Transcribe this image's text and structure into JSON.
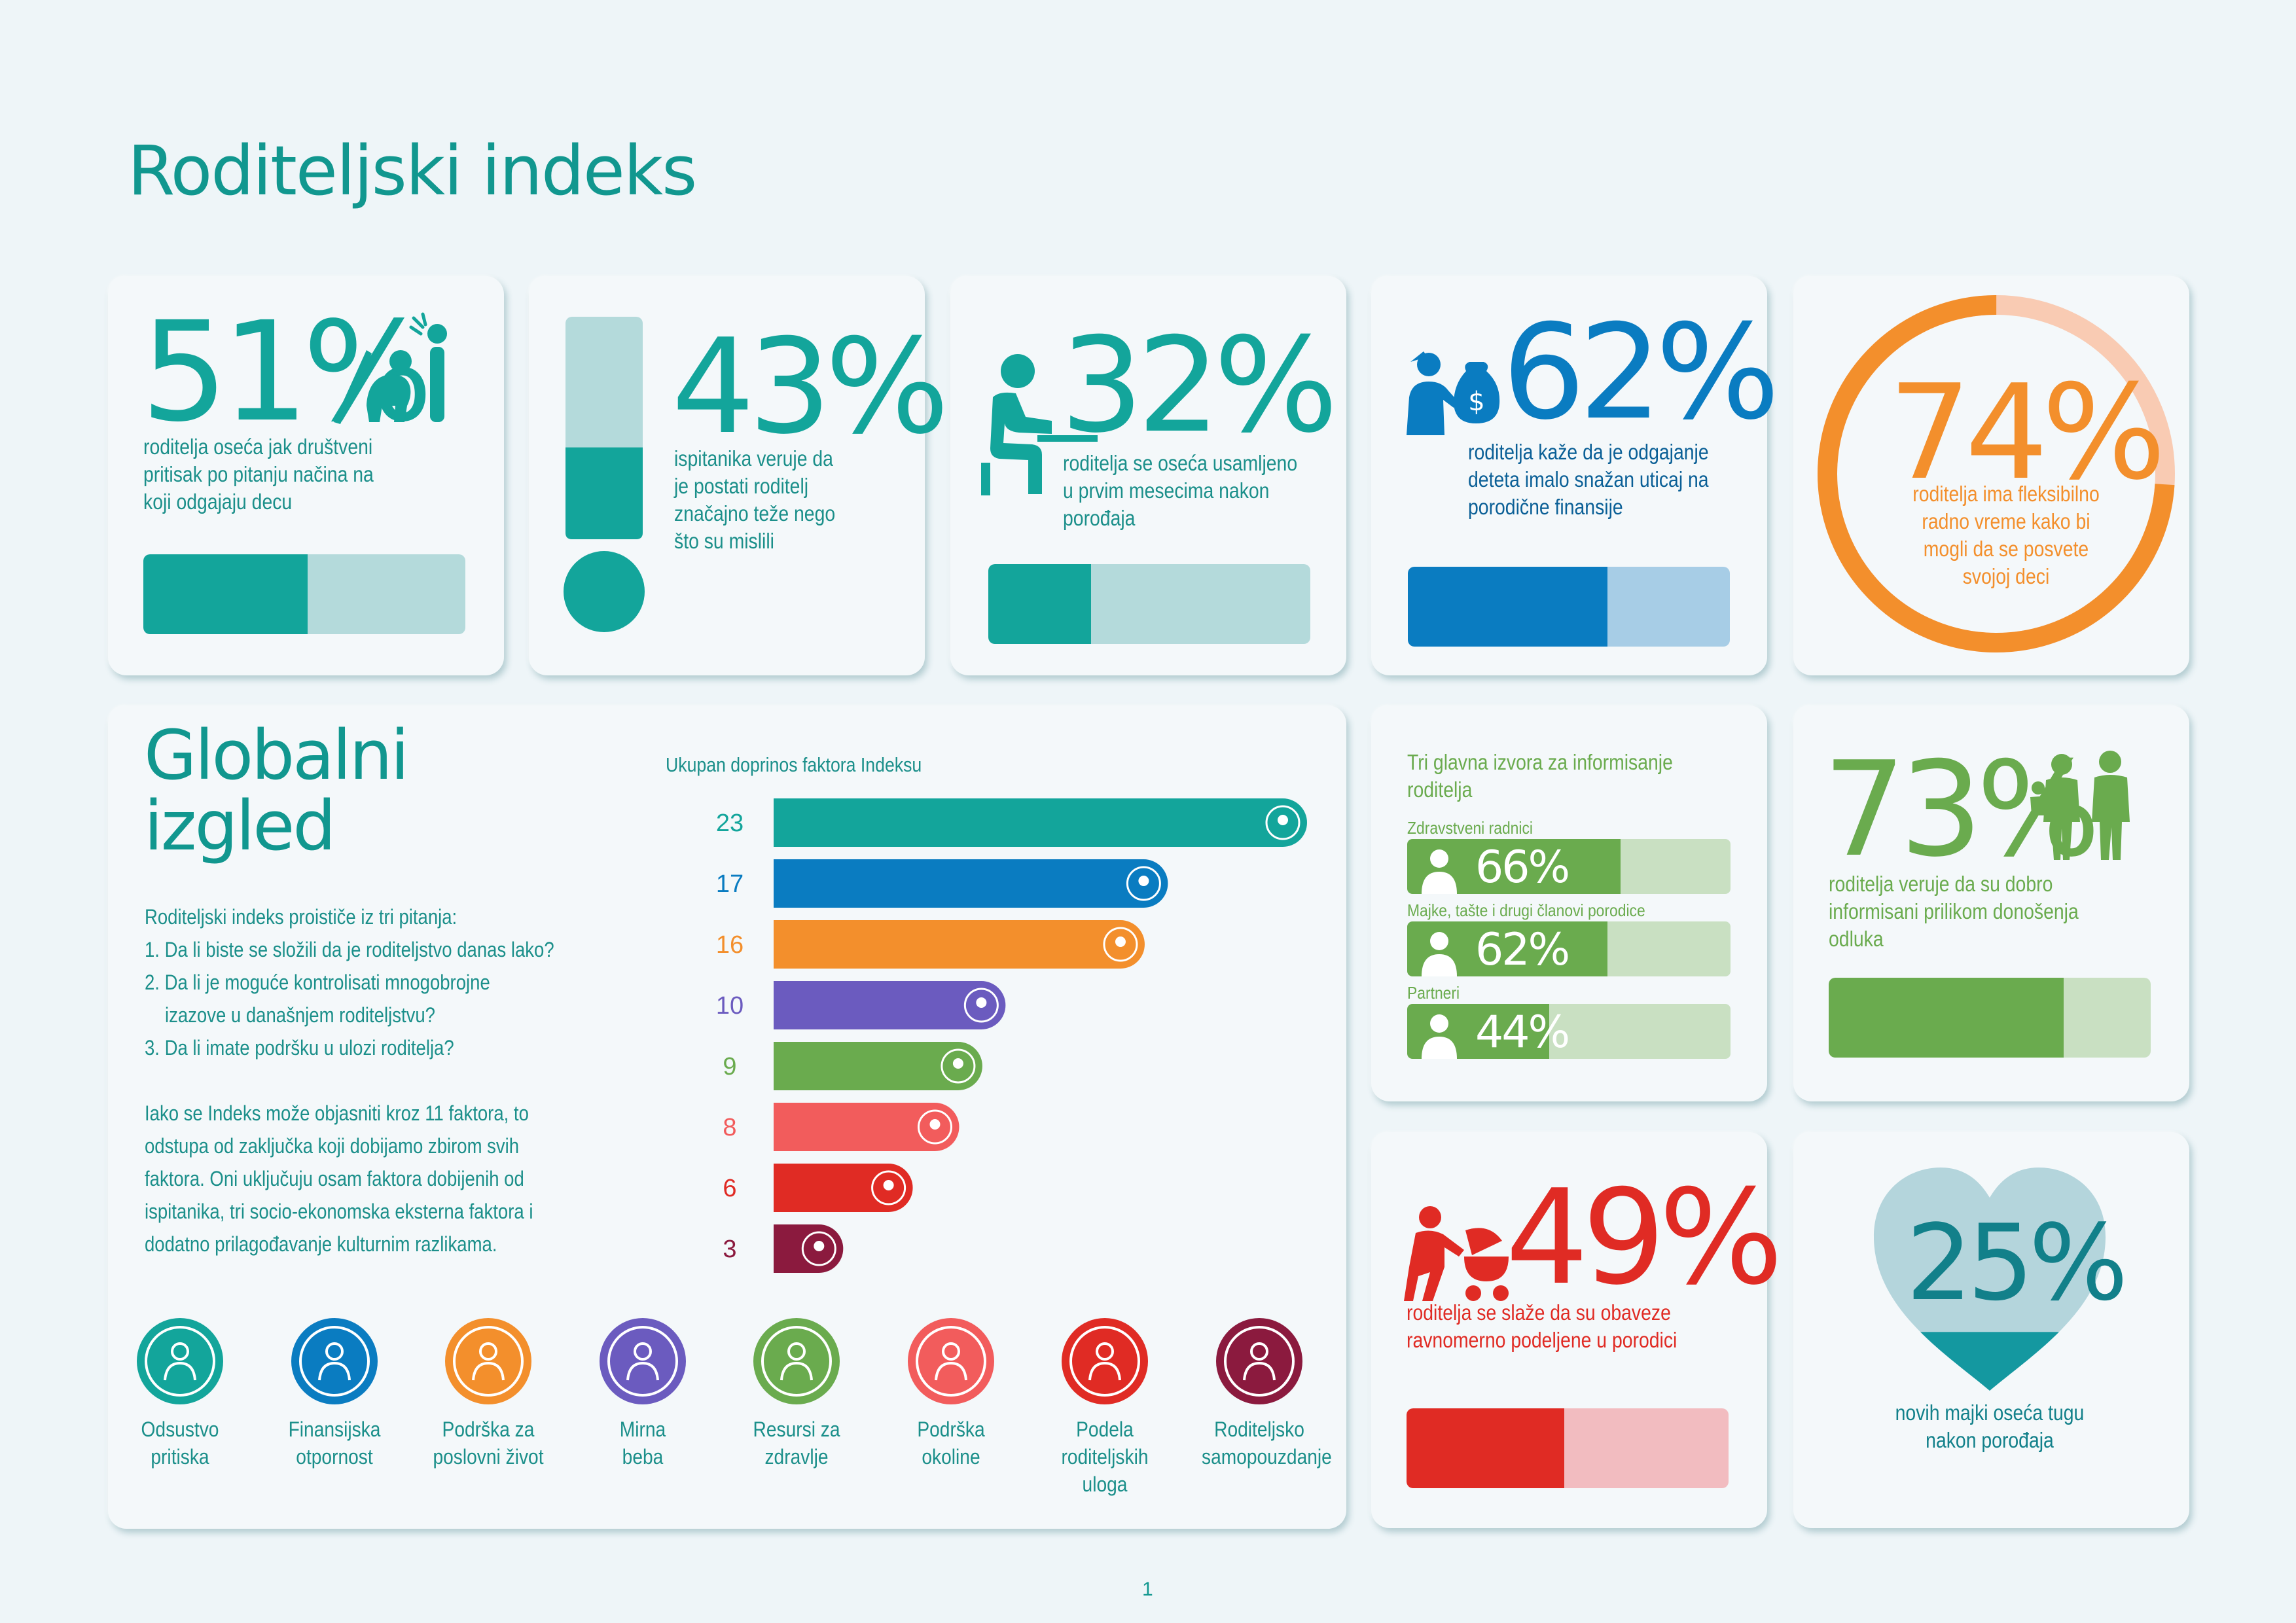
{
  "page_title": "Roditeljski indeks",
  "page_number": "1",
  "colors": {
    "teal": "#13a59b",
    "teal_light": "#b4dadb",
    "blue": "#0a7cc1",
    "blue_light": "#a7cde6",
    "orange": "#f38f2c",
    "orange_light": "#f9cbb3",
    "green": "#6aab4e",
    "green_light": "#c9e0c2",
    "red": "#e02b24",
    "red_light": "#f2bcc0",
    "purple": "#6b5bbf",
    "coral": "#f25c5c",
    "maroon": "#8b1a3e"
  },
  "stats": {
    "s51": {
      "value": "51%",
      "fraction": 0.51,
      "text": [
        "roditelja oseća jak društveni",
        "pritisak po pitanju načina na",
        "koji odgajaju decu"
      ]
    },
    "s43": {
      "value": "43%",
      "fraction": 0.43,
      "text": [
        "ispitanika veruje da",
        "je postati roditelj",
        "značajno teže nego",
        "što su mislili"
      ]
    },
    "s32": {
      "value": "32%",
      "fraction": 0.32,
      "text": [
        "roditelja se oseća usamljeno",
        "u prvim mesecima nakon",
        "porođaja"
      ]
    },
    "s62": {
      "value": "62%",
      "fraction": 0.62,
      "text": [
        "roditelja kaže da je odgajanje",
        "deteta imalo snažan uticaj na",
        "porodične finansije"
      ]
    },
    "s74": {
      "value": "74%",
      "fraction": 0.74,
      "text": [
        "roditelja ima fleksibilno",
        "radno vreme kako bi",
        "mogli da se posvete",
        "svojoj deci"
      ]
    },
    "s73": {
      "value": "73%",
      "fraction": 0.73,
      "text": [
        "roditelja veruje da su dobro",
        "informisani prilikom donošenja",
        "odluka"
      ]
    },
    "s49": {
      "value": "49%",
      "fraction": 0.49,
      "text": [
        "roditelja se slaže da su obaveze",
        "ravnomerno podeljene u porodici"
      ]
    },
    "s25": {
      "value": "25%",
      "fraction": 0.25,
      "text": [
        "novih majki oseća tugu",
        "nakon porođaja"
      ]
    }
  },
  "info_sources": {
    "title": [
      "Tri glavna izvora za informisanje",
      "roditelja"
    ],
    "items": [
      {
        "label": "Zdravstveni radnici",
        "value": "66%",
        "fraction": 0.66
      },
      {
        "label": "Majke, tašte i drugi članovi porodice",
        "value": "62%",
        "fraction": 0.62
      },
      {
        "label": "Partneri",
        "value": "44%",
        "fraction": 0.44
      }
    ]
  },
  "global": {
    "title_line1": "Globalni",
    "title_line2": "izgled",
    "questions_intro": "Roditeljski indeks proističe iz tri pitanja:",
    "q1": "1. Da li biste se složili da je roditeljstvo danas lako?",
    "q2a": "2. Da li je moguće kontrolisati mnogobrojne",
    "q2b": "izazove u današnjem roditeljstvu?",
    "q3": "3. Da li imate podršku u ulozi roditelja?",
    "para": [
      "Iako se Indeks može objasniti kroz 11 faktora, to",
      "odstupa od zaključka koji dobijamo zbirom svih",
      "faktora. Oni uključuju osam faktora dobijenih od",
      "ispitanika, tri socio-ekonomska eksterna faktora i",
      "dodatno prilagođavanje kulturnim razlikama."
    ],
    "factors": [
      {
        "name": [
          "Odsustvo",
          "pritiska"
        ],
        "icon": "stress-icon",
        "color": "#13a59b"
      },
      {
        "name": [
          "Finansijska",
          "otpornost"
        ],
        "icon": "piggy-bank-icon",
        "color": "#0a7cc1"
      },
      {
        "name": [
          "Podrška za",
          "poslovni život"
        ],
        "icon": "briefcase-icon",
        "color": "#f38f2c"
      },
      {
        "name": [
          "Mirna",
          "beba"
        ],
        "icon": "baby-icon",
        "color": "#6b5bbf"
      },
      {
        "name": [
          "Resursi za",
          "zdravlje"
        ],
        "icon": "health-hand-icon",
        "color": "#6aab4e"
      },
      {
        "name": [
          "Podrška",
          "okoline"
        ],
        "icon": "community-icon",
        "color": "#f25c5c"
      },
      {
        "name": [
          "Podela",
          "roditeljskih",
          "uloga"
        ],
        "icon": "family-icon",
        "color": "#e02b24"
      },
      {
        "name": [
          "Roditeljsko",
          "samopouzdanje"
        ],
        "icon": "confident-parent-icon",
        "color": "#8b1a3e"
      }
    ]
  },
  "chart_data": {
    "type": "bar",
    "orientation": "horizontal",
    "title": "Ukupan doprinos faktora Indeksu",
    "categories": [
      "Odsustvo pritiska",
      "Finansijska otpornost",
      "Podrška za poslovni život",
      "Mirna beba",
      "Resursi za zdravlje",
      "Podrška okoline",
      "Podela roditeljskih uloga",
      "Roditeljsko samopouzdanje"
    ],
    "values": [
      23,
      17,
      16,
      10,
      9,
      8,
      6,
      3
    ],
    "colors": [
      "#13a59b",
      "#0a7cc1",
      "#f38f2c",
      "#6b5bbf",
      "#6aab4e",
      "#f25c5c",
      "#e02b24",
      "#8b1a3e"
    ],
    "value_label_colors": [
      "#13a59b",
      "#0a7cc1",
      "#f38f2c",
      "#6b5bbf",
      "#6aab4e",
      "#f25c5c",
      "#e02b24",
      "#8b1a3e"
    ],
    "xlim": [
      0,
      23
    ],
    "grid": false,
    "legend": "none"
  }
}
